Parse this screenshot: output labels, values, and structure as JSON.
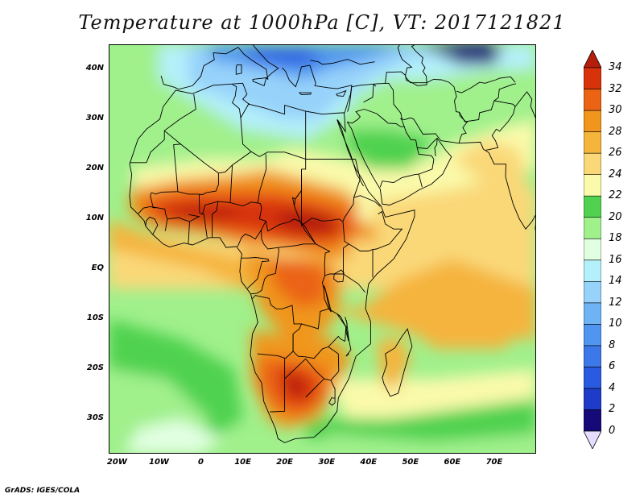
{
  "title": "Temperature at 1000hPa [C], VT: 2017121821",
  "credit": "GrADS: IGES/COLA",
  "map": {
    "lon_range": [
      -22,
      80
    ],
    "lat_range": [
      -37,
      45
    ],
    "lat_ticks": [
      {
        "lat": 40,
        "label": "40N"
      },
      {
        "lat": 30,
        "label": "30N"
      },
      {
        "lat": 20,
        "label": "20N"
      },
      {
        "lat": 10,
        "label": "10N"
      },
      {
        "lat": 0,
        "label": "EQ"
      },
      {
        "lat": -10,
        "label": "10S"
      },
      {
        "lat": -20,
        "label": "20S"
      },
      {
        "lat": -30,
        "label": "30S"
      }
    ],
    "lon_ticks": [
      {
        "lon": -20,
        "label": "20W"
      },
      {
        "lon": -10,
        "label": "10W"
      },
      {
        "lon": 0,
        "label": "0"
      },
      {
        "lon": 10,
        "label": "10E"
      },
      {
        "lon": 20,
        "label": "20E"
      },
      {
        "lon": 30,
        "label": "30E"
      },
      {
        "lon": 40,
        "label": "40E"
      },
      {
        "lon": 50,
        "label": "50E"
      },
      {
        "lon": 60,
        "label": "60E"
      },
      {
        "lon": 70,
        "label": "70E"
      }
    ]
  },
  "colorbar": {
    "levels": [
      {
        "value": 0,
        "label": "0",
        "color": "#160a78"
      },
      {
        "value": 2,
        "label": "2",
        "color": "#1e3cc8"
      },
      {
        "value": 4,
        "label": "4",
        "color": "#2a5ae0"
      },
      {
        "value": 6,
        "label": "6",
        "color": "#3c78e8"
      },
      {
        "value": 8,
        "label": "8",
        "color": "#5096f0"
      },
      {
        "value": 10,
        "label": "10",
        "color": "#6eb4f5"
      },
      {
        "value": 12,
        "label": "12",
        "color": "#96d2fa"
      },
      {
        "value": 14,
        "label": "14",
        "color": "#b4f0fa"
      },
      {
        "value": 16,
        "label": "16",
        "color": "#e1ffe1"
      },
      {
        "value": 18,
        "label": "18",
        "color": "#a0f08c"
      },
      {
        "value": 20,
        "label": "20",
        "color": "#50d250"
      },
      {
        "value": 22,
        "label": "22",
        "color": "#fafaaa"
      },
      {
        "value": 24,
        "label": "24",
        "color": "#fad878"
      },
      {
        "value": 26,
        "label": "26",
        "color": "#f5b43c"
      },
      {
        "value": 28,
        "label": "28",
        "color": "#f0961e"
      },
      {
        "value": 30,
        "label": "30",
        "color": "#eb6414"
      },
      {
        "value": 32,
        "label": "32",
        "color": "#d7320a"
      },
      {
        "value": 34,
        "label": "34",
        "color": "#b41e0a"
      }
    ],
    "under_color": "#e6dcff"
  }
}
